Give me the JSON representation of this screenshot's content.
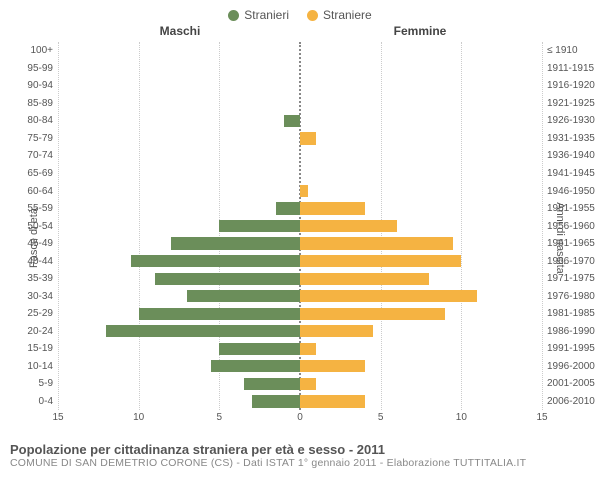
{
  "legend": {
    "male": {
      "label": "Stranieri",
      "color": "#6b8e5a"
    },
    "female": {
      "label": "Straniere",
      "color": "#f5b342"
    }
  },
  "headers": {
    "left": "Maschi",
    "right": "Femmine"
  },
  "axis_labels": {
    "left": "Fasce di età",
    "right": "Anni di nascita"
  },
  "chart": {
    "type": "population-pyramid",
    "xmax": 15,
    "xticks": [
      15,
      10,
      5,
      0,
      5,
      10,
      15
    ],
    "grid_color": "#cccccc",
    "centerline_color": "#888888",
    "rows": [
      {
        "age": "100+",
        "birth": "≤ 1910",
        "m": 0,
        "f": 0
      },
      {
        "age": "95-99",
        "birth": "1911-1915",
        "m": 0,
        "f": 0
      },
      {
        "age": "90-94",
        "birth": "1916-1920",
        "m": 0,
        "f": 0
      },
      {
        "age": "85-89",
        "birth": "1921-1925",
        "m": 0,
        "f": 0
      },
      {
        "age": "80-84",
        "birth": "1926-1930",
        "m": 1,
        "f": 0
      },
      {
        "age": "75-79",
        "birth": "1931-1935",
        "m": 0,
        "f": 1
      },
      {
        "age": "70-74",
        "birth": "1936-1940",
        "m": 0,
        "f": 0
      },
      {
        "age": "65-69",
        "birth": "1941-1945",
        "m": 0,
        "f": 0
      },
      {
        "age": "60-64",
        "birth": "1946-1950",
        "m": 0,
        "f": 0.5
      },
      {
        "age": "55-59",
        "birth": "1951-1955",
        "m": 1.5,
        "f": 4
      },
      {
        "age": "50-54",
        "birth": "1956-1960",
        "m": 5,
        "f": 6
      },
      {
        "age": "45-49",
        "birth": "1961-1965",
        "m": 8,
        "f": 9.5
      },
      {
        "age": "40-44",
        "birth": "1966-1970",
        "m": 10.5,
        "f": 10
      },
      {
        "age": "35-39",
        "birth": "1971-1975",
        "m": 9,
        "f": 8
      },
      {
        "age": "30-34",
        "birth": "1976-1980",
        "m": 7,
        "f": 11
      },
      {
        "age": "25-29",
        "birth": "1981-1985",
        "m": 10,
        "f": 9
      },
      {
        "age": "20-24",
        "birth": "1986-1990",
        "m": 12,
        "f": 4.5
      },
      {
        "age": "15-19",
        "birth": "1991-1995",
        "m": 5,
        "f": 1
      },
      {
        "age": "10-14",
        "birth": "1996-2000",
        "m": 5.5,
        "f": 4
      },
      {
        "age": "5-9",
        "birth": "2001-2005",
        "m": 3.5,
        "f": 1
      },
      {
        "age": "0-4",
        "birth": "2006-2010",
        "m": 3,
        "f": 4
      }
    ]
  },
  "caption": "Popolazione per cittadinanza straniera per età e sesso - 2011",
  "subcaption": "COMUNE DI SAN DEMETRIO CORONE (CS) - Dati ISTAT 1° gennaio 2011 - Elaborazione TUTTITALIA.IT"
}
